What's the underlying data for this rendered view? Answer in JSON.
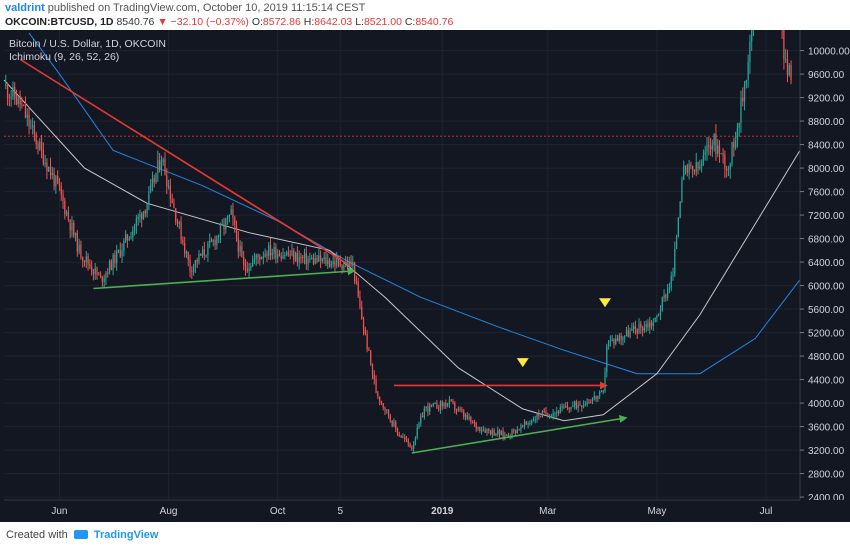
{
  "header": {
    "user": "valdrint",
    "published_text": "published on TradingView.com, October 10, 2019 11:15:14 CEST",
    "symbol": "OKCOIN:BTCUSD, 1D",
    "last": "8540.76",
    "change": "−32.10 (−0.37%)",
    "open_label": "O:",
    "open": "8572.86",
    "high_label": "H:",
    "high": "8642.03",
    "low_label": "L:",
    "low": "8521.00",
    "close_label": "C:",
    "close": "8540.76"
  },
  "legend": {
    "title": "Bitcoin / U.S. Dollar, 1D, OKCOIN",
    "indicator": "Ichimoku (9, 26, 52, 26)"
  },
  "footer": {
    "created_with": "Created with",
    "brand": "TradingView"
  },
  "colors": {
    "background": "#131722",
    "bull": "#26a69a",
    "bear": "#ef5350",
    "grid": "#1f2330",
    "resistance": "#e53935",
    "support": "#4caf50",
    "ma_white": "#c8c8c8",
    "ma_blue": "#1e88e5",
    "marker": "#ffeb3b",
    "price_line": "#c62828"
  },
  "chart_data": {
    "type": "candlestick",
    "y_axis": {
      "position": "right",
      "ticks": [
        2400,
        2800,
        3200,
        3600,
        4000,
        4400,
        4800,
        5200,
        5600,
        6000,
        6400,
        6800,
        7200,
        7600,
        8000,
        8400,
        8800,
        9200,
        9600,
        10000
      ],
      "range": [
        2350,
        10350
      ]
    },
    "x_axis": {
      "range": [
        "2018-05-01",
        "2019-07-20"
      ],
      "ticks": [
        {
          "label": "Jun",
          "date": "2018-06-01"
        },
        {
          "label": "Aug",
          "date": "2018-08-01"
        },
        {
          "label": "Oct",
          "date": "2018-10-01"
        },
        {
          "label": "5",
          "date": "2018-11-05"
        },
        {
          "label": "2019",
          "date": "2019-01-01"
        },
        {
          "label": "Mar",
          "date": "2019-03-01"
        },
        {
          "label": "May",
          "date": "2019-05-01"
        },
        {
          "label": "Jul",
          "date": "2019-07-01"
        }
      ]
    },
    "current_price_line": 8540.76,
    "price_path": [
      [
        "2018-05-01",
        9400
      ],
      [
        "2018-05-10",
        9100
      ],
      [
        "2018-05-20",
        8400
      ],
      [
        "2018-06-01",
        7600
      ],
      [
        "2018-06-12",
        6600
      ],
      [
        "2018-06-24",
        6100
      ],
      [
        "2018-07-05",
        6600
      ],
      [
        "2018-07-20",
        7400
      ],
      [
        "2018-07-28",
        8200
      ],
      [
        "2018-08-05",
        7200
      ],
      [
        "2018-08-13",
        6300
      ],
      [
        "2018-08-25",
        6700
      ],
      [
        "2018-09-05",
        7200
      ],
      [
        "2018-09-12",
        6300
      ],
      [
        "2018-09-25",
        6600
      ],
      [
        "2018-10-05",
        6550
      ],
      [
        "2018-10-15",
        6450
      ],
      [
        "2018-11-01",
        6400
      ],
      [
        "2018-11-12",
        6350
      ],
      [
        "2018-11-16",
        5600
      ],
      [
        "2018-11-25",
        4200
      ],
      [
        "2018-12-07",
        3500
      ],
      [
        "2018-12-15",
        3250
      ],
      [
        "2018-12-22",
        3900
      ],
      [
        "2019-01-05",
        4000
      ],
      [
        "2019-01-20",
        3600
      ],
      [
        "2019-02-05",
        3450
      ],
      [
        "2019-02-15",
        3600
      ],
      [
        "2019-02-24",
        3800
      ],
      [
        "2019-03-05",
        3850
      ],
      [
        "2019-03-20",
        4000
      ],
      [
        "2019-04-01",
        4150
      ],
      [
        "2019-04-03",
        5000
      ],
      [
        "2019-04-15",
        5200
      ],
      [
        "2019-04-30",
        5400
      ],
      [
        "2019-05-10",
        6200
      ],
      [
        "2019-05-15",
        7900
      ],
      [
        "2019-05-25",
        8000
      ],
      [
        "2019-06-01",
        8500
      ],
      [
        "2019-06-10",
        8000
      ],
      [
        "2019-06-18",
        9200
      ],
      [
        "2019-06-26",
        11000
      ],
      [
        "2019-07-04",
        11500
      ],
      [
        "2019-07-12",
        9800
      ],
      [
        "2019-07-15",
        9500
      ]
    ],
    "moving_average_white": [
      [
        "2018-05-01",
        9500
      ],
      [
        "2018-06-15",
        8000
      ],
      [
        "2018-07-20",
        7400
      ],
      [
        "2018-09-15",
        6900
      ],
      [
        "2018-10-30",
        6600
      ],
      [
        "2018-11-30",
        5800
      ],
      [
        "2019-01-10",
        4600
      ],
      [
        "2019-02-15",
        3900
      ],
      [
        "2019-03-10",
        3700
      ],
      [
        "2019-04-01",
        3800
      ],
      [
        "2019-05-01",
        4500
      ],
      [
        "2019-05-25",
        5500
      ],
      [
        "2019-06-20",
        6800
      ],
      [
        "2019-07-20",
        8300
      ]
    ],
    "moving_average_blue": [
      [
        "2018-05-15",
        10300
      ],
      [
        "2018-06-01",
        9600
      ],
      [
        "2018-07-01",
        8300
      ],
      [
        "2018-08-20",
        7700
      ],
      [
        "2018-10-01",
        7100
      ],
      [
        "2018-11-10",
        6400
      ],
      [
        "2018-12-20",
        5800
      ],
      [
        "2019-02-01",
        5300
      ],
      [
        "2019-03-10",
        4900
      ],
      [
        "2019-04-20",
        4500
      ],
      [
        "2019-05-25",
        4500
      ],
      [
        "2019-06-25",
        5100
      ],
      [
        "2019-07-20",
        6100
      ]
    ],
    "annotations": [
      {
        "kind": "line",
        "color": "red",
        "from": [
          "2018-05-10",
          9850
        ],
        "to": [
          "2018-11-10",
          6350
        ]
      },
      {
        "kind": "arrow",
        "color": "green",
        "from": [
          "2018-06-20",
          5950
        ],
        "to": [
          "2018-11-13",
          6250
        ]
      },
      {
        "kind": "arrow",
        "color": "red",
        "from": [
          "2018-12-05",
          4300
        ],
        "to": [
          "2019-04-03",
          4300
        ]
      },
      {
        "kind": "arrow",
        "color": "green",
        "from": [
          "2018-12-15",
          3150
        ],
        "to": [
          "2019-04-14",
          3750
        ]
      },
      {
        "kind": "marker",
        "color": "yellow",
        "at": [
          "2019-02-15",
          4680
        ]
      },
      {
        "kind": "marker",
        "color": "yellow",
        "at": [
          "2019-04-02",
          5700
        ]
      }
    ]
  }
}
